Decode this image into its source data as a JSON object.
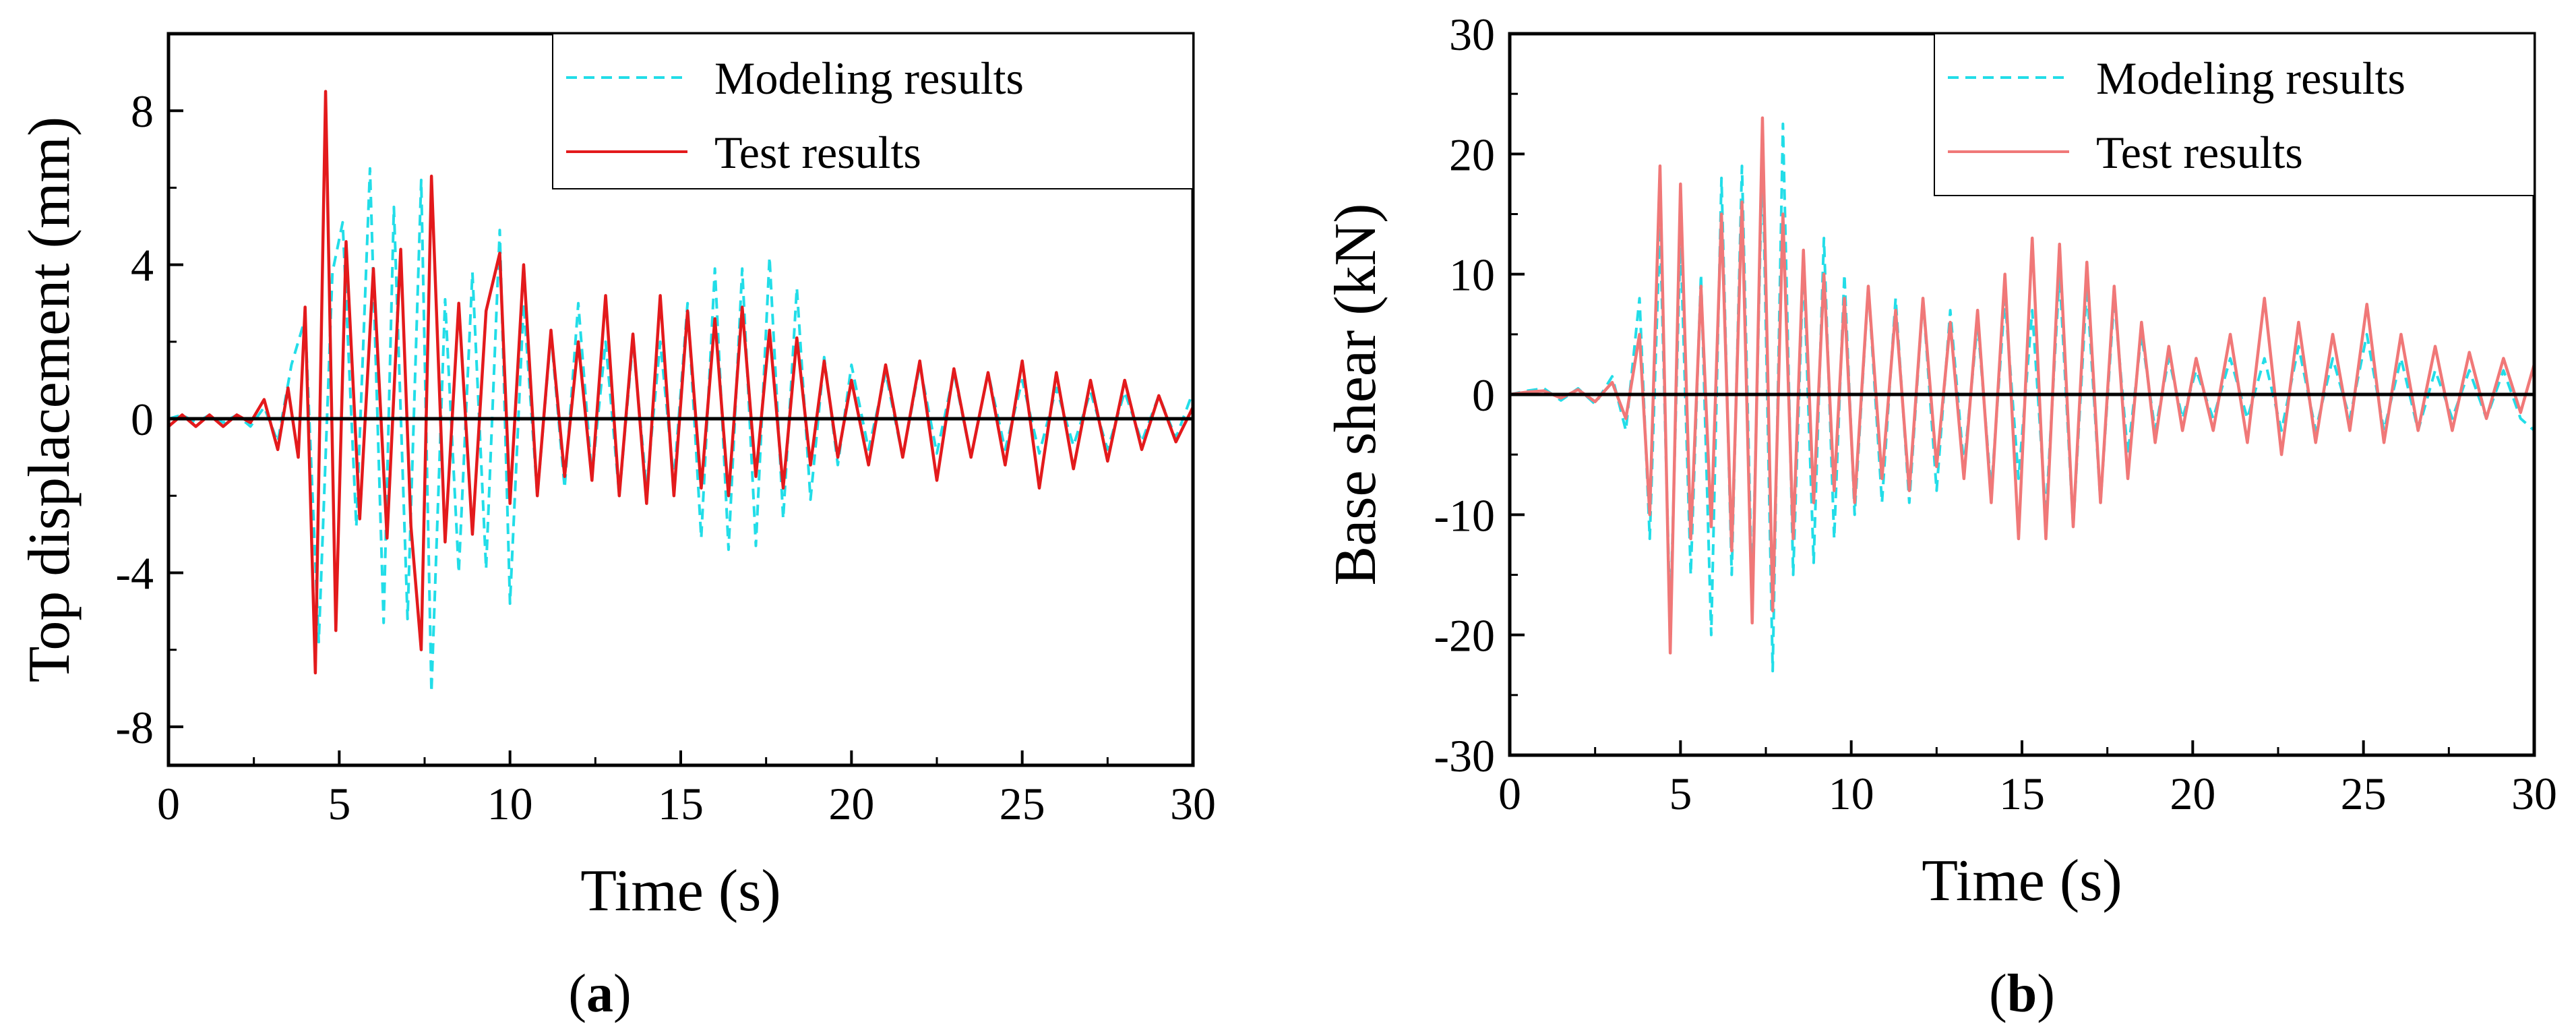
{
  "chart_data": [
    {
      "type": "line",
      "panel_label": "a",
      "xlabel": "Time (s)",
      "ylabel": "Top displacement (mm)",
      "xlim": [
        0,
        30
      ],
      "ylim": [
        -9,
        10
      ],
      "xticks": [
        0,
        5,
        10,
        15,
        20,
        25,
        30
      ],
      "yticks": [
        -8,
        -4,
        0,
        4,
        8
      ],
      "zero_line": true,
      "grid": false,
      "legend_position": "top-right",
      "series": [
        {
          "name": "Modeling results",
          "style": "dashed",
          "color": "#22dde8",
          "x": [
            0,
            0.4,
            0.8,
            1.2,
            1.6,
            2.0,
            2.4,
            2.8,
            3.2,
            3.6,
            4.0,
            4.4,
            4.8,
            5.1,
            5.5,
            5.9,
            6.3,
            6.6,
            7.0,
            7.4,
            7.7,
            8.1,
            8.5,
            8.9,
            9.3,
            9.7,
            10.0,
            10.4,
            10.8,
            11.2,
            11.6,
            12.0,
            12.4,
            12.8,
            13.2,
            13.6,
            14.0,
            14.4,
            14.8,
            15.2,
            15.6,
            16.0,
            16.4,
            16.8,
            17.2,
            17.6,
            18.0,
            18.4,
            18.8,
            19.2,
            19.6,
            20.0,
            20.5,
            21.0,
            21.5,
            22.0,
            22.5,
            23.0,
            23.5,
            24.0,
            24.5,
            25.0,
            25.5,
            26.0,
            26.5,
            27.0,
            27.5,
            28.0,
            28.5,
            29.0,
            29.5,
            30.0
          ],
          "y": [
            0,
            0.1,
            -0.1,
            0.1,
            -0.1,
            0.1,
            -0.2,
            0.3,
            -0.6,
            1.4,
            2.6,
            -5.8,
            3.8,
            5.1,
            -2.8,
            6.5,
            -5.3,
            5.5,
            -5.2,
            6.2,
            -7.1,
            3.1,
            -4.0,
            3.8,
            -3.9,
            4.9,
            -4.8,
            3.0,
            -2.0,
            2.2,
            -1.8,
            3.0,
            -1.5,
            2.0,
            -2.0,
            2.0,
            -1.8,
            2.0,
            -1.6,
            3.0,
            -3.1,
            3.9,
            -3.4,
            3.9,
            -3.3,
            4.2,
            -2.6,
            3.4,
            -2.1,
            1.6,
            -1.2,
            1.4,
            -0.8,
            1.2,
            -1.0,
            1.4,
            -0.9,
            1.2,
            -1.0,
            1.2,
            -0.8,
            1.0,
            -0.9,
            0.8,
            -0.7,
            0.7,
            -0.8,
            0.7,
            -0.6,
            0.6,
            -0.5,
            0.7
          ]
        },
        {
          "name": "Test results",
          "style": "solid",
          "color": "#e31a1c",
          "x": [
            0,
            0.4,
            0.8,
            1.2,
            1.6,
            2.0,
            2.4,
            2.8,
            3.2,
            3.5,
            3.8,
            4.0,
            4.3,
            4.6,
            4.9,
            5.2,
            5.6,
            6.0,
            6.4,
            6.8,
            7.1,
            7.4,
            7.7,
            8.1,
            8.5,
            8.9,
            9.3,
            9.7,
            10.0,
            10.4,
            10.8,
            11.2,
            11.6,
            12.0,
            12.4,
            12.8,
            13.2,
            13.6,
            14.0,
            14.4,
            14.8,
            15.2,
            15.6,
            16.0,
            16.4,
            16.8,
            17.2,
            17.6,
            18.0,
            18.4,
            18.8,
            19.2,
            19.6,
            20.0,
            20.5,
            21.0,
            21.5,
            22.0,
            22.5,
            23.0,
            23.5,
            24.0,
            24.5,
            25.0,
            25.5,
            26.0,
            26.5,
            27.0,
            27.5,
            28.0,
            28.5,
            29.0,
            29.5,
            30.0
          ],
          "y": [
            -0.2,
            0.1,
            -0.2,
            0.1,
            -0.2,
            0.1,
            -0.1,
            0.5,
            -0.8,
            0.8,
            -1.0,
            2.9,
            -6.6,
            8.5,
            -5.5,
            4.6,
            -2.6,
            3.9,
            -3.1,
            4.4,
            -2.8,
            -6.0,
            6.3,
            -3.2,
            3.0,
            -3.0,
            2.8,
            4.3,
            -2.2,
            4.0,
            -2.0,
            2.3,
            -1.5,
            2.0,
            -1.6,
            3.2,
            -2.0,
            2.2,
            -2.2,
            3.2,
            -2.0,
            2.8,
            -1.8,
            2.6,
            -2.0,
            2.9,
            -1.5,
            2.3,
            -1.8,
            2.1,
            -1.2,
            1.5,
            -1.0,
            1.0,
            -1.2,
            1.4,
            -1.0,
            1.5,
            -1.6,
            1.3,
            -1.0,
            1.2,
            -1.2,
            1.5,
            -1.8,
            1.2,
            -1.3,
            1.0,
            -1.1,
            1.0,
            -0.8,
            0.6,
            -0.6,
            0.3
          ]
        }
      ]
    },
    {
      "type": "line",
      "panel_label": "b",
      "xlabel": "Time (s)",
      "ylabel": "Base shear (kN)",
      "xlim": [
        0,
        30
      ],
      "ylim": [
        -30,
        30
      ],
      "xticks": [
        0,
        5,
        10,
        15,
        20,
        25,
        30
      ],
      "yticks": [
        -30,
        -20,
        -10,
        0,
        10,
        20,
        30
      ],
      "zero_line": true,
      "grid": false,
      "legend_position": "top-right",
      "series": [
        {
          "name": "Modeling results",
          "style": "dashed",
          "color": "#22dde8",
          "x": [
            0,
            0.5,
            1.0,
            1.5,
            2.0,
            2.5,
            3.0,
            3.4,
            3.8,
            4.1,
            4.4,
            4.7,
            5.0,
            5.3,
            5.6,
            5.9,
            6.2,
            6.5,
            6.8,
            7.1,
            7.4,
            7.7,
            8.0,
            8.3,
            8.6,
            8.9,
            9.2,
            9.5,
            9.8,
            10.1,
            10.5,
            10.9,
            11.3,
            11.7,
            12.1,
            12.5,
            12.9,
            13.3,
            13.7,
            14.1,
            14.5,
            14.9,
            15.3,
            15.7,
            16.1,
            16.5,
            16.9,
            17.3,
            17.7,
            18.1,
            18.5,
            18.9,
            19.3,
            19.7,
            20.1,
            20.6,
            21.1,
            21.6,
            22.1,
            22.6,
            23.1,
            23.6,
            24.1,
            24.6,
            25.1,
            25.6,
            26.1,
            26.6,
            27.1,
            27.6,
            28.1,
            28.6,
            29.1,
            29.6,
            30.0
          ],
          "y": [
            0,
            0.3,
            0.5,
            -0.5,
            0.5,
            -0.8,
            1.5,
            -3.0,
            8.0,
            -12.0,
            14.0,
            -19.0,
            13.0,
            -15.0,
            10.0,
            -20.0,
            18.0,
            -15.0,
            19.0,
            -17.0,
            20.0,
            -23.0,
            22.5,
            -15.0,
            11.0,
            -14.0,
            13.0,
            -12.0,
            10.0,
            -10.0,
            9.0,
            -9.0,
            8.0,
            -9.0,
            8.0,
            -8.0,
            7.0,
            -6.0,
            6.0,
            -8.0,
            8.0,
            -7.0,
            7.0,
            -10.0,
            10.0,
            -11.0,
            9.0,
            -9.0,
            8.0,
            -5.0,
            5.0,
            -3.0,
            3.0,
            -2.0,
            2.0,
            -2.0,
            3.0,
            -2.0,
            3.0,
            -3.0,
            4.0,
            -3.0,
            3.0,
            -2.0,
            5.0,
            -3.0,
            3.0,
            -3.0,
            2.0,
            -2.0,
            2.0,
            -2.0,
            2.0,
            -2.0,
            -3.0
          ]
        },
        {
          "name": "Test results",
          "style": "solid",
          "color": "#f07878",
          "x": [
            0,
            0.5,
            1.0,
            1.5,
            2.0,
            2.5,
            3.0,
            3.4,
            3.8,
            4.1,
            4.4,
            4.7,
            5.0,
            5.3,
            5.6,
            5.9,
            6.2,
            6.5,
            6.8,
            7.1,
            7.4,
            7.7,
            8.0,
            8.3,
            8.6,
            8.9,
            9.2,
            9.5,
            9.8,
            10.1,
            10.5,
            10.9,
            11.3,
            11.7,
            12.1,
            12.5,
            12.9,
            13.3,
            13.7,
            14.1,
            14.5,
            14.9,
            15.3,
            15.7,
            16.1,
            16.5,
            16.9,
            17.3,
            17.7,
            18.1,
            18.5,
            18.9,
            19.3,
            19.7,
            20.1,
            20.6,
            21.1,
            21.6,
            22.1,
            22.6,
            23.1,
            23.6,
            24.1,
            24.6,
            25.1,
            25.6,
            26.1,
            26.6,
            27.1,
            27.6,
            28.1,
            28.6,
            29.1,
            29.6,
            30.0
          ],
          "y": [
            0,
            0.2,
            0.3,
            -0.3,
            0.4,
            -0.6,
            1.0,
            -2.0,
            5.0,
            -10.0,
            19.0,
            -21.5,
            17.5,
            -12.0,
            9.0,
            -11.0,
            15.0,
            -13.0,
            16.0,
            -19.0,
            23.0,
            -18.0,
            15.0,
            -12.0,
            12.0,
            -9.0,
            10.0,
            -8.0,
            8.0,
            -9.0,
            9.0,
            -7.0,
            7.0,
            -8.0,
            8.0,
            -6.0,
            6.0,
            -7.0,
            7.0,
            -9.0,
            10.0,
            -12.0,
            13.0,
            -12.0,
            12.5,
            -11.0,
            11.0,
            -9.0,
            9.0,
            -7.0,
            6.0,
            -4.0,
            4.0,
            -3.0,
            3.0,
            -3.0,
            5.0,
            -4.0,
            8.0,
            -5.0,
            6.0,
            -4.0,
            5.0,
            -3.0,
            7.5,
            -4.0,
            5.0,
            -3.0,
            4.0,
            -3.0,
            3.5,
            -2.0,
            3.0,
            -1.5,
            2.5
          ]
        }
      ]
    }
  ]
}
